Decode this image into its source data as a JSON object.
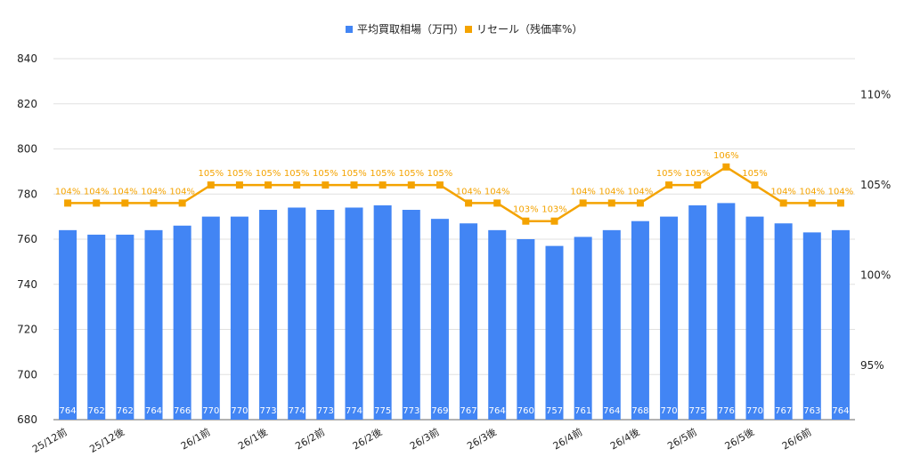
{
  "chart_data": {
    "type": "bar",
    "categories": [
      "25/12前",
      "25/12後",
      "",
      "",
      "26/1前",
      "26/1後",
      "26/2前",
      "26/2後",
      "26/3前",
      "26/3後",
      "",
      "",
      "",
      "",
      "26/4前",
      "26/4後",
      "26/5前",
      "26/5後",
      "26/6前",
      "",
      "",
      "",
      "",
      "",
      "",
      "",
      "",
      ""
    ],
    "x_labels": [
      "25/12前",
      "25/12後",
      "26/1前",
      "26/1後",
      "26/2前",
      "26/2後",
      "26/3前",
      "26/3後",
      "26/4前",
      "26/4後",
      "26/5前",
      "26/5後",
      "26/6前"
    ],
    "series": [
      {
        "name": "平均買取相場（万円）",
        "type": "bar",
        "axis": "left",
        "color": "#4285f4",
        "values": [
          764,
          762,
          762,
          764,
          766,
          770,
          770,
          773,
          774,
          773,
          774,
          775,
          773,
          769,
          767,
          764,
          760,
          757,
          761,
          764,
          768,
          770,
          775,
          776,
          770,
          767,
          763,
          764
        ],
        "labels": [
          "764",
          "762",
          "762",
          "764",
          "766",
          "770",
          "770",
          "773",
          "774",
          "773",
          "774",
          "775",
          "773",
          "769",
          "767",
          "764",
          "760",
          "757",
          "761",
          "764",
          "768",
          "770",
          "775",
          "776",
          "770",
          "767",
          "763",
          "764"
        ]
      },
      {
        "name": "リセール（残価率%）",
        "type": "line",
        "axis": "right",
        "color": "#f4a300",
        "values": [
          104,
          104,
          104,
          104,
          104,
          105,
          105,
          105,
          105,
          105,
          105,
          105,
          105,
          105,
          104,
          104,
          103,
          103,
          104,
          104,
          104,
          105,
          105,
          106,
          105,
          104,
          104,
          104
        ],
        "labels": [
          "104%",
          "104%",
          "104%",
          "104%",
          "104%",
          "105%",
          "105%",
          "105%",
          "105%",
          "105%",
          "105%",
          "105%",
          "105%",
          "105%",
          "104%",
          "104%",
          "103%",
          "103%",
          "104%",
          "104%",
          "104%",
          "105%",
          "105%",
          "106%",
          "105%",
          "104%",
          "104%",
          "104%"
        ]
      }
    ],
    "ylim_left": [
      680,
      840
    ],
    "yticks_left": [
      "680",
      "700",
      "720",
      "740",
      "760",
      "780",
      "800",
      "820",
      "840"
    ],
    "ylim_right": [
      92,
      112
    ],
    "yticks_right": [
      "95%",
      "100%",
      "105%",
      "110%"
    ],
    "grid": true,
    "legend_position": "top-center"
  }
}
